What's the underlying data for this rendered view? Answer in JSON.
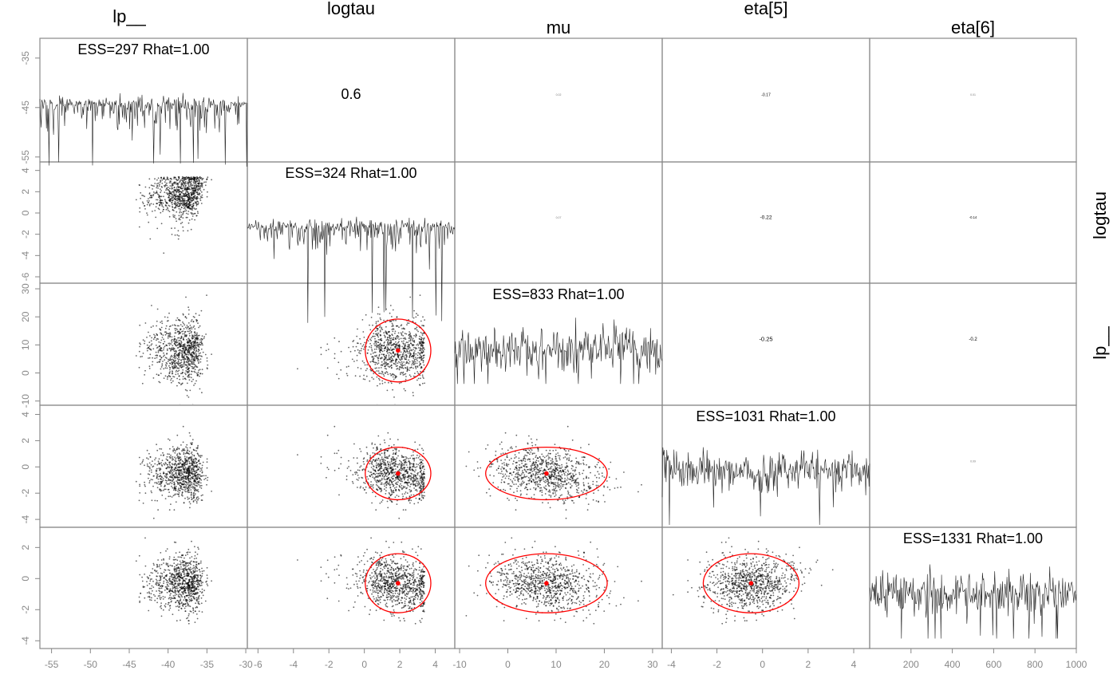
{
  "chart_data": {
    "type": "scatter",
    "variables": [
      "lp__",
      "logtau",
      "mu",
      "eta[5]",
      "eta[6]"
    ],
    "column_titles": [
      "lp__",
      "logtau",
      "mu",
      "eta[5]",
      "eta[6]"
    ],
    "side_labels": [
      "logtau",
      "lp__"
    ],
    "diagonal_labels": [
      "ESS=297 Rhat=1.00",
      "ESS=324 Rhat=1.00",
      "ESS=833 Rhat=1.00",
      "ESS=1031 Rhat=1.00",
      "ESS=1331 Rhat=1.00"
    ],
    "upper_correlations": [
      {
        "row": 0,
        "col": 1,
        "label": "0.6"
      },
      {
        "row": 0,
        "col": 2,
        "label": "0.02"
      },
      {
        "row": 0,
        "col": 3,
        "label": "-0.17"
      },
      {
        "row": 0,
        "col": 4,
        "label": "0.01"
      },
      {
        "row": 1,
        "col": 2,
        "label": "0.07"
      },
      {
        "row": 1,
        "col": 3,
        "label": "-0.22"
      },
      {
        "row": 1,
        "col": 4,
        "label": "-0.14"
      },
      {
        "row": 2,
        "col": 3,
        "label": "-0.25"
      },
      {
        "row": 2,
        "col": 4,
        "label": "-0.2"
      },
      {
        "row": 3,
        "col": 4,
        "label": "0.09"
      }
    ],
    "x_axis": {
      "lp__": {
        "ticks": [
          -55,
          -50,
          -45,
          -40,
          -35,
          -30
        ],
        "range": [
          -56.5,
          -29.8
        ]
      },
      "logtau": {
        "ticks": [
          -6,
          -4,
          -2,
          0,
          2,
          4
        ],
        "range": [
          -6.6,
          5.1
        ]
      },
      "mu": {
        "ticks": [
          -10,
          0,
          10,
          20,
          30
        ],
        "range": [
          -11.0,
          32.0
        ]
      },
      "eta[5]": {
        "ticks": [
          -4,
          -2,
          0,
          2,
          4
        ],
        "range": [
          -4.4,
          4.7
        ]
      },
      "eta[6]": {
        "ticks": [
          200,
          400,
          600,
          800,
          1000
        ],
        "range": [
          0,
          1000
        ]
      }
    },
    "y_axis": {
      "lp__": {
        "ticks": [
          -35,
          -45,
          -55
        ],
        "range": [
          -56.0,
          -31.0
        ]
      },
      "logtau": {
        "ticks": [
          4,
          2,
          0,
          -2,
          -4,
          -6
        ],
        "range": [
          -6.6,
          4.8
        ]
      },
      "mu": {
        "ticks": [
          30,
          20,
          10,
          0,
          -10
        ],
        "range": [
          -11.5,
          32.0
        ]
      },
      "eta[5]": {
        "ticks": [
          4,
          2,
          0,
          -2,
          -4
        ],
        "range": [
          -4.6,
          4.7
        ]
      },
      "eta[6]": {
        "ticks": [
          2,
          0,
          -2,
          -4
        ],
        "range": [
          -4.5,
          3.3
        ]
      }
    },
    "trace_x_range": [
      0,
      1000
    ],
    "draws_per_panel": 900,
    "marginal_summary": {
      "lp__": {
        "center": -39.0,
        "sd": 3.0,
        "min": -52.5,
        "max": -33.0
      },
      "logtau": {
        "center": 1.6,
        "sd": 1.05,
        "min": -5.8,
        "max": 3.3
      },
      "mu": {
        "center": 8.0,
        "sd": 5.2,
        "min": -5.0,
        "max": 27.0
      },
      "eta[5]": {
        "center": -0.5,
        "sd": 0.95,
        "min": -4.2,
        "max": 3.6
      },
      "eta[6]": {
        "center": -0.3,
        "sd": 0.9,
        "min": -3.3,
        "max": 2.7
      }
    },
    "scatter_sd": {
      "lp__": {
        "center": -39.5,
        "sd": 3.6
      },
      "logtau": {
        "center": 1.8,
        "sd": 1.1
      },
      "mu": {
        "center": 7.9,
        "sd": 5.6
      },
      "eta[5]": {
        "center": -0.5,
        "sd": 0.98
      },
      "eta[6]": {
        "center": -0.3,
        "sd": 0.9
      }
    },
    "pairwise_correlation": {
      "lp__-logtau": 0.6,
      "lp__-mu": 0.02,
      "lp__-eta[5]": -0.17,
      "lp__-eta[6]": 0.01,
      "logtau-mu": 0.07,
      "logtau-eta[5]": -0.22,
      "logtau-eta[6]": -0.14,
      "mu-eta[5]": -0.25,
      "mu-eta[6]": -0.2,
      "eta[5]-eta[6]": 0.09
    },
    "ellipses": [
      {
        "row": 2,
        "col": 1,
        "center_x": 1.9,
        "center_y": 8.0,
        "semi_x": 1.85,
        "semi_y": 11.2
      },
      {
        "row": 3,
        "col": 1,
        "center_x": 1.9,
        "center_y": -0.5,
        "semi_x": 1.85,
        "semi_y": 2.0
      },
      {
        "row": 3,
        "col": 2,
        "center_x": 8.0,
        "center_y": -0.5,
        "semi_x": 12.6,
        "semi_y": 2.0
      },
      {
        "row": 4,
        "col": 1,
        "center_x": 1.9,
        "center_y": -0.3,
        "semi_x": 1.85,
        "semi_y": 1.9
      },
      {
        "row": 4,
        "col": 2,
        "center_x": 8.0,
        "center_y": -0.3,
        "semi_x": 12.6,
        "semi_y": 1.9
      },
      {
        "row": 4,
        "col": 3,
        "center_x": -0.5,
        "center_y": -0.3,
        "semi_x": 2.1,
        "semi_y": 1.9
      }
    ],
    "colors": {
      "points": "#000000",
      "trace": "#222222",
      "ellipse": "#ff0000",
      "axis": "#888888",
      "frame": "#888888"
    },
    "grid": false,
    "legend": "none"
  }
}
